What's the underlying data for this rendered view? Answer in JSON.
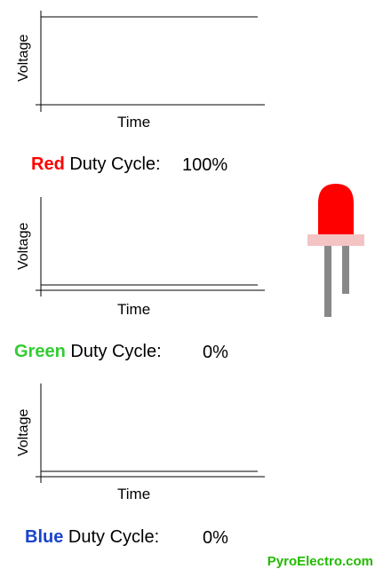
{
  "colors": {
    "red": "#ff0000",
    "green": "#33cc33",
    "blue": "#1a44cc",
    "brand": "#22bb00",
    "led_body": "#ff0000",
    "led_base": "#f4c4c4",
    "led_leg": "#888888"
  },
  "graphs": [
    {
      "ylabel": "Voltage",
      "xlabel": "Time",
      "color_word": "Red",
      "duty_label": "Duty Cycle:",
      "duty_value": "100%",
      "duty_fraction": 1.0
    },
    {
      "ylabel": "Voltage",
      "xlabel": "Time",
      "color_word": "Green",
      "duty_label": "Duty Cycle:",
      "duty_value": "0%",
      "duty_fraction": 0.0
    },
    {
      "ylabel": "Voltage",
      "xlabel": "Time",
      "color_word": "Blue",
      "duty_label": "Duty Cycle:",
      "duty_value": "0%",
      "duty_fraction": 0.0
    }
  ],
  "led": {
    "icon": "red-led-icon"
  },
  "brand": "PyroElectro.com"
}
